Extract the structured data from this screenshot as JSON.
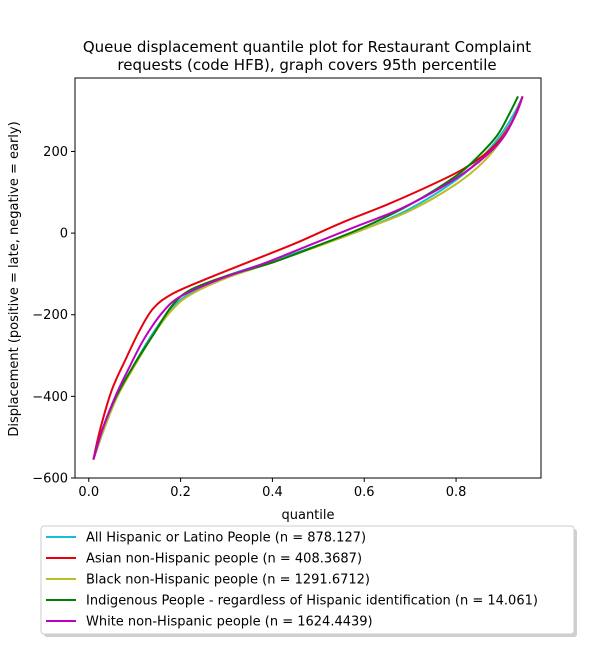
{
  "chart_data": {
    "type": "line",
    "title_lines": [
      "Queue displacement quantile plot for Restaurant Complaint",
      "requests (code HFB), graph covers 95th percentile"
    ],
    "xlabel": "quantile",
    "ylabel": "Displacement (positive = late, negative = early)",
    "xlim": [
      -0.03,
      0.985
    ],
    "ylim": [
      -600,
      380
    ],
    "xticks": [
      0.0,
      0.2,
      0.4,
      0.6,
      0.8
    ],
    "xtick_labels": [
      "0.0",
      "0.2",
      "0.4",
      "0.6",
      "0.8"
    ],
    "yticks": [
      -600,
      -400,
      -200,
      0,
      200
    ],
    "ytick_labels": [
      "−600",
      "−400",
      "−200",
      "0",
      "200"
    ],
    "grid": false,
    "legend_position": "below",
    "series": [
      {
        "name": "All Hispanic or Latino People (n = 878.127)",
        "color": "#17becf",
        "points": [
          [
            0.01,
            -555
          ],
          [
            0.03,
            -490
          ],
          [
            0.06,
            -405
          ],
          [
            0.1,
            -320
          ],
          [
            0.14,
            -245
          ],
          [
            0.18,
            -185
          ],
          [
            0.22,
            -148
          ],
          [
            0.3,
            -105
          ],
          [
            0.4,
            -68
          ],
          [
            0.5,
            -30
          ],
          [
            0.6,
            10
          ],
          [
            0.7,
            60
          ],
          [
            0.8,
            130
          ],
          [
            0.86,
            190
          ],
          [
            0.9,
            245
          ],
          [
            0.93,
            300
          ],
          [
            0.945,
            335
          ]
        ]
      },
      {
        "name": "Asian non-Hispanic people (n = 408.3687)",
        "color": "#e8000b",
        "points": [
          [
            0.01,
            -555
          ],
          [
            0.025,
            -480
          ],
          [
            0.05,
            -385
          ],
          [
            0.08,
            -310
          ],
          [
            0.11,
            -240
          ],
          [
            0.14,
            -185
          ],
          [
            0.18,
            -150
          ],
          [
            0.25,
            -115
          ],
          [
            0.35,
            -70
          ],
          [
            0.45,
            -25
          ],
          [
            0.55,
            25
          ],
          [
            0.65,
            70
          ],
          [
            0.75,
            120
          ],
          [
            0.82,
            160
          ],
          [
            0.88,
            210
          ],
          [
            0.92,
            270
          ],
          [
            0.945,
            335
          ]
        ]
      },
      {
        "name": "Black non-Hispanic people (n = 1291.6712)",
        "color": "#bcbd22",
        "points": [
          [
            0.01,
            -555
          ],
          [
            0.03,
            -490
          ],
          [
            0.06,
            -405
          ],
          [
            0.1,
            -325
          ],
          [
            0.14,
            -250
          ],
          [
            0.18,
            -190
          ],
          [
            0.22,
            -152
          ],
          [
            0.3,
            -110
          ],
          [
            0.4,
            -72
          ],
          [
            0.5,
            -32
          ],
          [
            0.6,
            10
          ],
          [
            0.7,
            55
          ],
          [
            0.8,
            120
          ],
          [
            0.86,
            175
          ],
          [
            0.9,
            230
          ],
          [
            0.93,
            290
          ],
          [
            0.945,
            335
          ]
        ]
      },
      {
        "name": "Indigenous People - regardless of Hispanic identification (n = 14.061)",
        "color": "#008000",
        "points": [
          [
            0.01,
            -555
          ],
          [
            0.03,
            -480
          ],
          [
            0.06,
            -400
          ],
          [
            0.1,
            -320
          ],
          [
            0.14,
            -250
          ],
          [
            0.18,
            -180
          ],
          [
            0.22,
            -140
          ],
          [
            0.3,
            -105
          ],
          [
            0.4,
            -72
          ],
          [
            0.5,
            -30
          ],
          [
            0.6,
            15
          ],
          [
            0.7,
            70
          ],
          [
            0.8,
            140
          ],
          [
            0.85,
            190
          ],
          [
            0.89,
            240
          ],
          [
            0.915,
            290
          ],
          [
            0.935,
            335
          ]
        ]
      },
      {
        "name": "White non-Hispanic people (n = 1624.4439)",
        "color": "#c000c0",
        "points": [
          [
            0.01,
            -555
          ],
          [
            0.03,
            -480
          ],
          [
            0.06,
            -395
          ],
          [
            0.09,
            -325
          ],
          [
            0.12,
            -260
          ],
          [
            0.16,
            -195
          ],
          [
            0.2,
            -155
          ],
          [
            0.28,
            -115
          ],
          [
            0.38,
            -75
          ],
          [
            0.48,
            -30
          ],
          [
            0.58,
            15
          ],
          [
            0.68,
            60
          ],
          [
            0.78,
            120
          ],
          [
            0.85,
            175
          ],
          [
            0.9,
            230
          ],
          [
            0.93,
            290
          ],
          [
            0.945,
            335
          ]
        ]
      }
    ]
  }
}
